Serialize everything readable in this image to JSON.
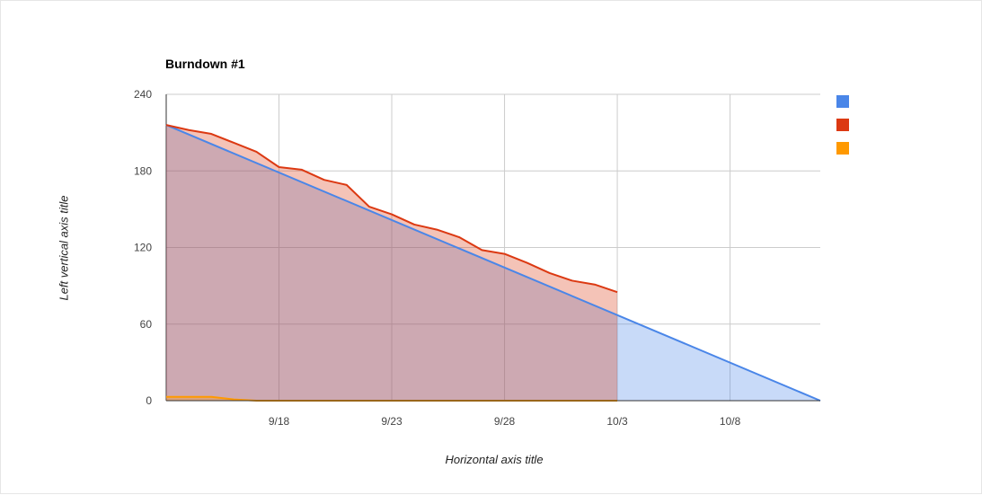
{
  "chart_data": {
    "type": "area",
    "title": "Burndown #1",
    "xlabel": "Horizontal axis title",
    "ylabel": "Left vertical axis title",
    "x_start": "9/13",
    "x_end": "10/12",
    "xlim": [
      "9/13",
      "10/12"
    ],
    "ylim": [
      0,
      240
    ],
    "y_ticks": [
      0,
      60,
      120,
      180,
      240
    ],
    "x_tick_labels": [
      "9/18",
      "9/23",
      "9/28",
      "10/3",
      "10/8"
    ],
    "grid": true,
    "legend_position": "right",
    "series": [
      {
        "name": "",
        "color": "#4a86e8",
        "fill": "#c9daf8",
        "x": [
          "9/13",
          "10/12"
        ],
        "values": [
          216,
          0
        ]
      },
      {
        "name": "",
        "color": "#dc3912",
        "fill": "#f4c7bf",
        "x": [
          "9/13",
          "9/14",
          "9/15",
          "9/16",
          "9/17",
          "9/18",
          "9/19",
          "9/20",
          "9/21",
          "9/22",
          "9/23",
          "9/24",
          "9/25",
          "9/26",
          "9/27",
          "9/28",
          "9/29",
          "9/30",
          "10/1",
          "10/2",
          "10/3"
        ],
        "values": [
          216,
          212,
          209,
          202,
          195,
          183,
          181,
          173,
          169,
          152,
          146,
          138,
          134,
          128,
          118,
          115,
          108,
          100,
          94,
          91,
          85
        ]
      },
      {
        "name": "",
        "color": "#ff9900",
        "fill": "#ffe0b2",
        "x": [
          "9/13",
          "9/14",
          "9/15",
          "9/16",
          "9/17",
          "9/18",
          "9/23",
          "9/28",
          "10/3"
        ],
        "values": [
          3,
          3,
          3,
          1,
          0,
          0,
          0,
          0,
          0
        ]
      }
    ]
  }
}
